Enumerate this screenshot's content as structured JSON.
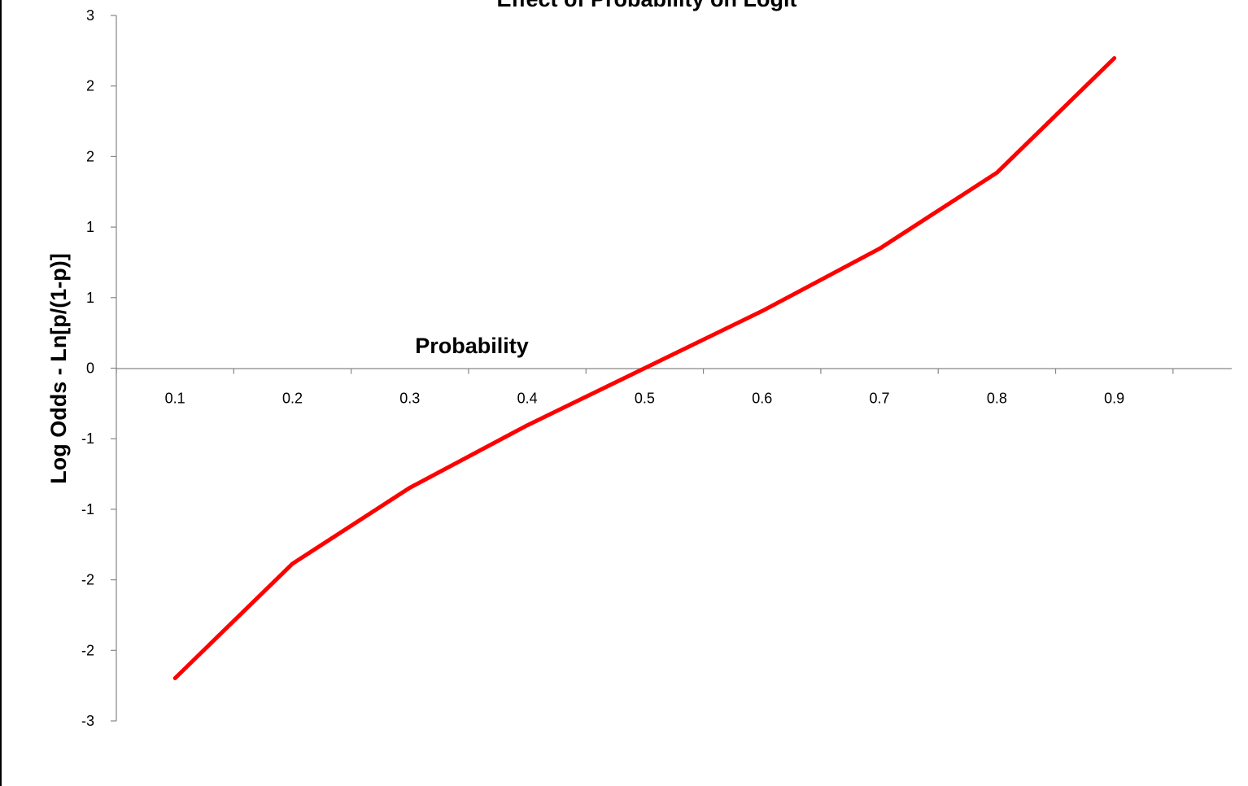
{
  "chart_data": {
    "type": "line",
    "title": "Effect of Probability on Logit",
    "xlabel": "Probability",
    "ylabel": "Log Odds - Ln[p/(1-p)]",
    "categories": [
      "0.1",
      "0.2",
      "0.3",
      "0.4",
      "0.5",
      "0.6",
      "0.7",
      "0.8",
      "0.9"
    ],
    "yticks": [
      "3",
      "2",
      "2",
      "1",
      "1",
      "0",
      "-1",
      "-1",
      "-2",
      "-2",
      "-3"
    ],
    "ylim": [
      -2.5,
      2.5
    ],
    "series": [
      {
        "values": [
          -2.197,
          -1.386,
          -0.847,
          -0.405,
          0.0,
          0.405,
          0.847,
          1.386,
          2.197
        ]
      }
    ],
    "line_color": "#ff0000",
    "grid": false,
    "legend": "none"
  }
}
